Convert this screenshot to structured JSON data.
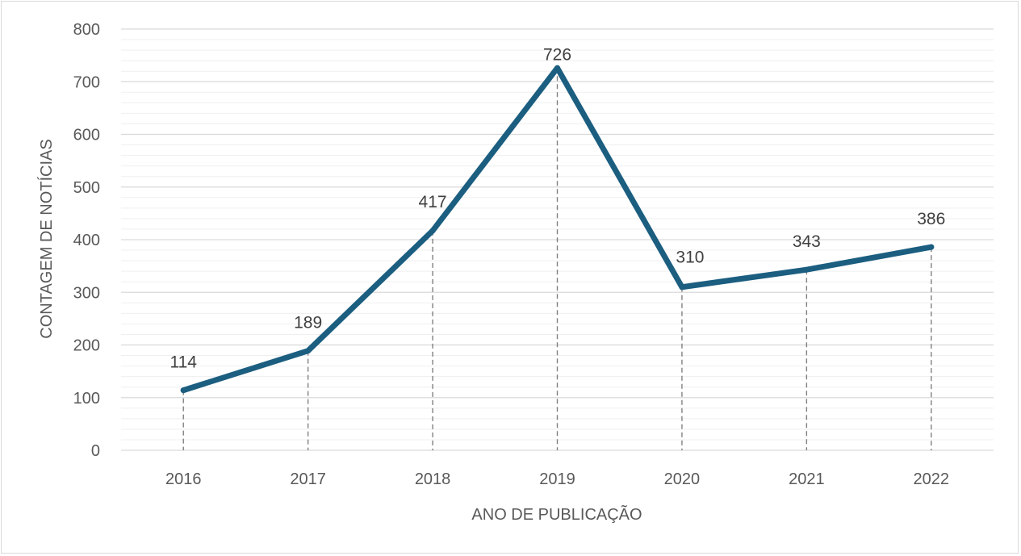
{
  "chart_data": {
    "type": "line",
    "title": "",
    "xlabel": "ANO DE PUBLICAÇÃO",
    "ylabel": "CONTAGEM DE NOTÍCIAS",
    "categories": [
      "2016",
      "2017",
      "2018",
      "2019",
      "2020",
      "2021",
      "2022"
    ],
    "series": [
      {
        "values": [
          114,
          189,
          417,
          726,
          310,
          343,
          386
        ]
      }
    ],
    "data_labels": [
      "114",
      "189",
      "417",
      "726",
      "310",
      "343",
      "386"
    ],
    "ylim": [
      0,
      800
    ],
    "y_ticks": [
      "0",
      "100",
      "200",
      "300",
      "400",
      "500",
      "600",
      "700",
      "800"
    ],
    "y_tick_values": [
      0,
      100,
      200,
      300,
      400,
      500,
      600,
      700,
      800
    ],
    "minor_grid_step": 20,
    "grid": true,
    "drop_lines": true,
    "legend": "none",
    "colors": {
      "line": "#1b5e80",
      "major_grid": "#d9d9d9",
      "minor_grid": "#efefef",
      "drop_line": "#808080",
      "text": "#595959",
      "data_label": "#404040"
    }
  }
}
